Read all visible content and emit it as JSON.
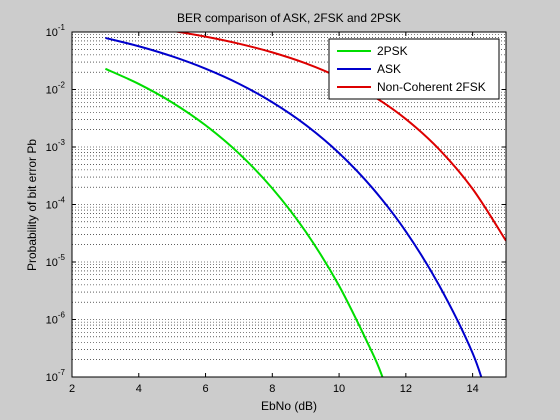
{
  "chart_data": {
    "type": "line",
    "title": "BER comparison of ASK, 2FSK and 2PSK",
    "xlabel": "EbNo (dB)",
    "ylabel": "Probability of bit error Pb",
    "xlim": [
      2,
      15
    ],
    "ylim": [
      1e-07,
      0.1
    ],
    "yscale": "log",
    "grid": "y-major-and-minor-dotted",
    "legend_position": "top-right",
    "x_ticks": [
      2,
      4,
      6,
      8,
      10,
      12,
      14
    ],
    "y_ticks": [
      {
        "base": "10",
        "exp": "-7",
        "value": 1e-07
      },
      {
        "base": "10",
        "exp": "-6",
        "value": 1e-06
      },
      {
        "base": "10",
        "exp": "-5",
        "value": 1e-05
      },
      {
        "base": "10",
        "exp": "-4",
        "value": 0.0001
      },
      {
        "base": "10",
        "exp": "-3",
        "value": 0.001
      },
      {
        "base": "10",
        "exp": "-2",
        "value": 0.01
      },
      {
        "base": "10",
        "exp": "-1",
        "value": 0.1
      }
    ],
    "series": [
      {
        "name": "2PSK",
        "color": "#00dd00",
        "x": [
          3,
          4,
          5,
          6,
          7,
          8,
          9,
          10,
          11,
          11.3
        ],
        "y": [
          0.0229,
          0.0125,
          0.00595,
          0.00239,
          0.000773,
          0.000191,
          3.36e-05,
          3.87e-06,
          2.61e-07,
          1e-07
        ]
      },
      {
        "name": "ASK",
        "color": "#0000cc",
        "x": [
          3,
          4,
          5,
          6,
          7,
          8,
          9,
          10,
          11,
          12,
          13,
          14,
          14.5
        ],
        "y": [
          0.0789,
          0.0565,
          0.0377,
          0.023,
          0.0126,
          0.006,
          0.00242,
          0.000783,
          0.000193,
          3.4e-05,
          3.9e-06,
          2.6e-07,
          3.5e-08
        ]
      },
      {
        "name": "Non-Coherent 2FSK",
        "color": "#dd0000",
        "x": [
          3,
          4,
          5,
          6,
          7,
          8,
          9,
          10,
          11,
          12,
          13,
          14,
          15
        ],
        "y": [
          0.1497,
          0.1269,
          0.1046,
          0.083,
          0.0626,
          0.0442,
          0.0285,
          0.0162,
          0.00782,
          0.00306,
          0.000908,
          0.000187,
          2.34e-05
        ]
      }
    ]
  }
}
